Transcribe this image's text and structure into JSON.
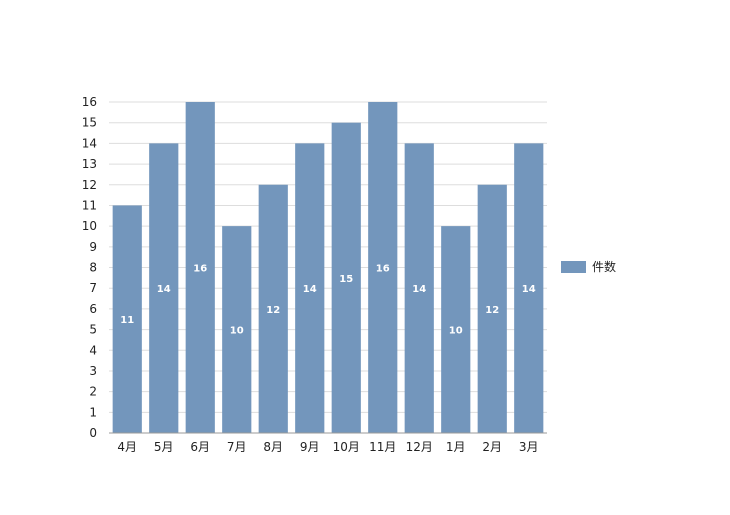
{
  "chart_data": {
    "type": "bar",
    "categories": [
      "4月",
      "5月",
      "6月",
      "7月",
      "8月",
      "9月",
      "10月",
      "11月",
      "12月",
      "1月",
      "2月",
      "3月"
    ],
    "series": [
      {
        "name": "件数",
        "values": [
          11,
          14,
          16,
          10,
          12,
          14,
          15,
          16,
          14,
          10,
          12,
          14
        ]
      }
    ],
    "data_labels": [
      "11",
      "14",
      "16",
      "10",
      "12",
      "14",
      "15",
      "16",
      "14",
      "10",
      "12",
      "14"
    ],
    "y_ticks": [
      "0",
      "1",
      "2",
      "3",
      "4",
      "5",
      "6",
      "7",
      "8",
      "9",
      "10",
      "11",
      "12",
      "13",
      "14",
      "15",
      "16"
    ],
    "ylim": [
      0,
      16
    ],
    "grid": true,
    "legend": {
      "position": "right"
    },
    "colors": {
      "bar": "#7396bc",
      "grid": "#dddddd",
      "axis": "#999999"
    }
  }
}
